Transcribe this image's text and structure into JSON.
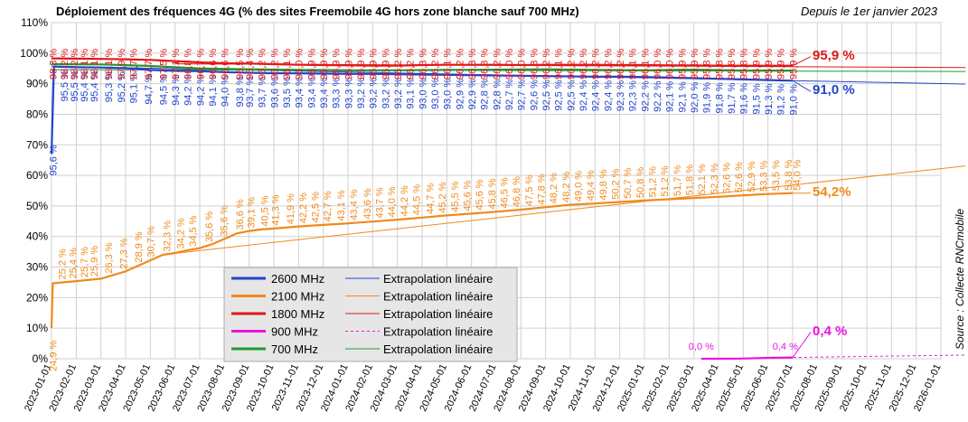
{
  "chart_data": {
    "type": "line",
    "title": "Déploiement des fréquences 4G (% des sites Freemobile 4G hors zone blanche sauf 700 MHz)",
    "subtitle": "Depuis le 1er janvier 2023",
    "source": "Source : Collecte RNCmobile",
    "ylim": [
      0,
      110
    ],
    "y_ticks": [
      "0%",
      "10%",
      "20%",
      "30%",
      "40%",
      "50%",
      "60%",
      "70%",
      "80%",
      "90%",
      "100%",
      "110%"
    ],
    "x_ticks": [
      "2023-01-01",
      "2023-02-01",
      "2023-03-01",
      "2023-04-01",
      "2023-05-01",
      "2023-06-01",
      "2023-07-01",
      "2023-08-01",
      "2023-09-01",
      "2023-10-01",
      "2023-11-01",
      "2023-12-01",
      "2024-01-01",
      "2024-02-01",
      "2024-03-01",
      "2024-04-01",
      "2024-05-01",
      "2024-06-01",
      "2024-07-01",
      "2024-08-01",
      "2024-09-01",
      "2024-10-01",
      "2024-11-01",
      "2024-12-01",
      "2025-01-01",
      "2025-02-01",
      "2025-03-01",
      "2025-04-01",
      "2025-05-01",
      "2025-06-01",
      "2025-07-01",
      "2025-08-01",
      "2025-09-01",
      "2025-10-01",
      "2025-11-01",
      "2025-12-01",
      "2026-01-01"
    ],
    "grid": true,
    "legend_position": "bottom-left",
    "legend": [
      {
        "series": "2600 MHz",
        "extrapolation": "Extrapolation linéaire",
        "color": "#2244cc"
      },
      {
        "series": "2100 MHz",
        "extrapolation": "Extrapolation linéaire",
        "color": "#f08a1c"
      },
      {
        "series": "1800 MHz",
        "extrapolation": "Extrapolation linéaire",
        "color": "#e01818"
      },
      {
        "series": "900 MHz",
        "extrapolation": "Extrapolation linéaire",
        "color": "#e814e0"
      },
      {
        "series": "700 MHz",
        "extrapolation": "Extrapolation linéaire",
        "color": "#229933"
      }
    ],
    "series": [
      {
        "name": "2600 MHz",
        "color": "#2244cc",
        "labels_x": [
          0.1,
          0.55,
          0.95,
          1.35,
          1.75,
          2.35,
          2.85,
          3.35,
          3.95,
          4.55,
          5.05,
          5.55,
          6.05,
          6.55,
          7.05,
          7.65,
          8.05,
          8.55,
          9.05,
          9.55,
          10.05,
          10.55,
          11.05,
          11.55,
          12.05,
          12.55,
          13.05,
          13.55,
          14.05,
          14.55,
          15.05,
          15.55,
          16.05,
          16.55,
          17.05,
          17.55,
          18.05,
          18.55,
          19.05,
          19.55,
          20.05,
          20.55,
          21.05,
          21.55,
          22.05,
          22.55,
          23.05,
          23.55,
          24.05,
          24.55,
          25.05,
          25.55,
          26.05,
          26.55,
          27.05,
          27.55,
          28.05,
          28.55,
          29.05,
          29.55,
          30.05
        ],
        "labels": [
          "95,6 %",
          "95,5 %",
          "95,5 %",
          "95,4 %",
          "95,4 %",
          "95,3 %",
          "95,2 %",
          "95,1 %",
          "94,7 %",
          "94,5 %",
          "94,3 %",
          "94,2 %",
          "94,2 %",
          "94,1 %",
          "94,0 %",
          "93,8 %",
          "93,7 %",
          "93,7 %",
          "93,6 %",
          "93,5 %",
          "93,4 %",
          "93,4 %",
          "93,4 %",
          "93,3 %",
          "93,3 %",
          "93,2 %",
          "93,2 %",
          "93,2 %",
          "93,2 %",
          "93,1 %",
          "93,0 %",
          "93,0 %",
          "93,0 %",
          "92,9 %",
          "92,9 %",
          "92,8 %",
          "92,8 %",
          "92,7 %",
          "92,7 %",
          "92,6 %",
          "92,5 %",
          "92,5 %",
          "92,5 %",
          "92,4 %",
          "92,4 %",
          "92,4 %",
          "92,3 %",
          "92,3 %",
          "92,2 %",
          "92,2 %",
          "92,1 %",
          "92,1 %",
          "92,0 %",
          "91,9 %",
          "91,8 %",
          "91,7 %",
          "91,6 %",
          "91,5 %",
          "91,3 %",
          "91,2 %",
          "91,0 %"
        ],
        "x": [
          0,
          0.1,
          0.5,
          1,
          2,
          3,
          4,
          5,
          6,
          7,
          8,
          9,
          10,
          11,
          12,
          13,
          14,
          15,
          16,
          17,
          18,
          19,
          20,
          21,
          22,
          23,
          24,
          25,
          26,
          27,
          28,
          29,
          30
        ],
        "values": [
          67,
          95.6,
          95.5,
          95.4,
          95.3,
          95.1,
          94.5,
          94.2,
          94.1,
          93.8,
          93.6,
          93.4,
          93.4,
          93.3,
          93.2,
          93.2,
          93.1,
          93.0,
          92.9,
          92.8,
          92.7,
          92.6,
          92.5,
          92.4,
          92.3,
          92.3,
          92.2,
          92.0,
          91.8,
          91.6,
          91.4,
          91.2,
          91.0
        ],
        "end_label": "91,0 %",
        "extrapolation": {
          "x": [
            0,
            37
          ],
          "values": [
            95.7,
            89.9
          ]
        }
      },
      {
        "name": "2100 MHz",
        "color": "#f08a1c",
        "labels_x": [
          0.1,
          0.45,
          0.9,
          1.35,
          1.75,
          2.35,
          2.95,
          3.55,
          4.05,
          4.7,
          5.25,
          5.75,
          6.4,
          7.0,
          7.65,
          8.1,
          8.65,
          9.1,
          9.7,
          10.2,
          10.7,
          11.2,
          11.75,
          12.25,
          12.8,
          13.3,
          13.8,
          14.3,
          14.8,
          15.35,
          15.85,
          16.35,
          16.85,
          17.35,
          17.85,
          18.35,
          18.85,
          19.35,
          19.85,
          20.35,
          20.85,
          21.35,
          21.85,
          22.35,
          22.85,
          23.35,
          23.85,
          24.35,
          24.85,
          25.35,
          25.85,
          26.35,
          26.85,
          27.35,
          27.85,
          28.35,
          28.85,
          29.35,
          29.85,
          30.2
        ],
        "labels": [
          "24,9 %",
          "25,2 %",
          "25,4 %",
          "25,7 %",
          "25,9 %",
          "26,3 %",
          "27,3 %",
          "28,9 %",
          "30,7 %",
          "32,3 %",
          "34,2 %",
          "34,5 %",
          "35,6 %",
          "35,6 %",
          "36,6 %",
          "39,1 %",
          "40,5 %",
          "41,3 %",
          "41,9 %",
          "42,2 %",
          "42,5 %",
          "42,7 %",
          "43,1 %",
          "43,4 %",
          "43,6 %",
          "43,7 %",
          "44,0 %",
          "44,2 %",
          "44,5 %",
          "44,7 %",
          "45,2 %",
          "45,5 %",
          "45,6 %",
          "45,6 %",
          "45,8 %",
          "46,5 %",
          "46,8 %",
          "47,5 %",
          "47,8 %",
          "48,2 %",
          "48,2 %",
          "49,0 %",
          "49,4 %",
          "49,8 %",
          "50,2 %",
          "50,7 %",
          "50,8 %",
          "51,2 %",
          "51,2 %",
          "51,7 %",
          "51,8 %",
          "52,1 %",
          "52,3 %",
          "52,6 %",
          "52,6 %",
          "52,9 %",
          "53,3 %",
          "53,5 %",
          "53,8 %",
          "54,0 %"
        ],
        "x": [
          0,
          0.05,
          1,
          2,
          3,
          4,
          4.5,
          5,
          5.5,
          6,
          6.5,
          7,
          7.5,
          8,
          8.5,
          9,
          10,
          11,
          12,
          13,
          14,
          15,
          16,
          17,
          18,
          19,
          20,
          21,
          22,
          23,
          24,
          25,
          26,
          27,
          28,
          29,
          30
        ],
        "values": [
          10,
          24.7,
          25.4,
          26.2,
          28.6,
          32.2,
          34.0,
          34.6,
          35.5,
          36.2,
          37.5,
          39.2,
          41.0,
          41.8,
          42.3,
          42.6,
          43.3,
          43.8,
          44.3,
          44.9,
          45.5,
          46.2,
          46.9,
          47.5,
          48.1,
          48.8,
          49.6,
          50.4,
          50.8,
          51.3,
          51.8,
          52.2,
          52.6,
          53.0,
          53.5,
          53.9,
          54.2
        ],
        "end_label": "54,2%",
        "extrapolation": {
          "x": [
            5,
            37
          ],
          "values": [
            34.5,
            63.1
          ]
        }
      },
      {
        "name": "1800 MHz",
        "color": "#e01818",
        "labels_x": [
          0.1,
          0.55,
          0.95,
          1.35,
          1.75,
          2.35,
          2.85,
          3.35,
          3.95,
          4.55,
          5.05,
          5.55,
          6.05,
          6.55,
          7.05,
          7.65,
          8.05,
          8.55,
          9.05,
          9.55,
          10.05,
          10.55,
          11.05,
          11.55,
          12.05,
          12.55,
          13.05,
          13.55,
          14.05,
          14.55,
          15.05,
          15.55,
          16.05,
          16.55,
          17.05,
          17.55,
          18.05,
          18.55,
          19.05,
          19.55,
          20.05,
          20.55,
          21.05,
          21.55,
          22.05,
          22.55,
          23.05,
          23.55,
          24.05,
          24.55,
          25.05,
          25.55,
          26.05,
          26.55,
          27.05,
          27.55,
          28.05,
          28.55,
          29.05,
          29.55,
          30.05
        ],
        "labels": [
          "98,3 %",
          "98,2 %",
          "98,2 %",
          "98,1 %",
          "98,1 %",
          "98,1 %",
          "97,9 %",
          "97,7 %",
          "97,7 %",
          "97,5 %",
          "97,1 %",
          "96,8 %",
          "96,7 %",
          "96,6 %",
          "96,6 %",
          "96,5 %",
          "96,4 %",
          "96,2 %",
          "96,2 %",
          "96,1 %",
          "96,0 %",
          "95,9 %",
          "95,9 %",
          "95,9 %",
          "95,9 %",
          "95,9 %",
          "95,9 %",
          "95,9 %",
          "96,2 %",
          "96,2 %",
          "96,3 %",
          "96,2 %",
          "96,1 %",
          "96,2 %",
          "96,3 %",
          "96,3 %",
          "96,2 %",
          "96,0 %",
          "96,0 %",
          "96,3 %",
          "96,2 %",
          "96,1 %",
          "96,2 %",
          "96,2 %",
          "96,2 %",
          "96,2 %",
          "96,2 %",
          "96,1 %",
          "96,1 %",
          "96,0 %",
          "96,0 %",
          "95,9 %",
          "95,9 %",
          "95,8 %",
          "95,8 %",
          "95,8 %",
          "95,8 %",
          "95,9 %",
          "95,9 %",
          "95,9 %",
          "95,9 %"
        ],
        "x": [
          0,
          1,
          2,
          3,
          4,
          5,
          6,
          7,
          8,
          9,
          10,
          11,
          12,
          13,
          14,
          15,
          16,
          17,
          18,
          19,
          20,
          21,
          22,
          23,
          24,
          25,
          26,
          27,
          28,
          29,
          30
        ],
        "values": [
          98.3,
          98.2,
          98.1,
          98.0,
          97.8,
          97.4,
          97.0,
          96.7,
          96.6,
          96.4,
          96.2,
          96.1,
          96.0,
          95.9,
          95.9,
          96.1,
          96.2,
          96.2,
          96.2,
          96.1,
          96.2,
          96.2,
          96.2,
          96.1,
          96.1,
          96.0,
          96.0,
          95.9,
          95.9,
          95.9,
          95.9
        ],
        "end_label": "95,9 %",
        "extrapolation": {
          "x": [
            5,
            37
          ],
          "values": [
            96.5,
            95.3
          ]
        }
      },
      {
        "name": "900 MHz",
        "color": "#e814e0",
        "labels_x": [
          26.3,
          29.7
        ],
        "labels": [
          "0,0 %",
          "0,4 %"
        ],
        "x": [
          26.3,
          27,
          28,
          29,
          30
        ],
        "values": [
          0.0,
          0.0,
          0.05,
          0.3,
          0.4
        ],
        "end_label": "0,4 %",
        "extrapolation": {
          "x": [
            26.3,
            37
          ],
          "values": [
            0.0,
            1.2
          ]
        }
      },
      {
        "name": "700 MHz",
        "color": "#229933",
        "labels_x": [],
        "labels": [],
        "x": [
          0,
          2,
          4,
          6,
          8,
          10,
          12,
          14,
          16,
          18,
          20,
          22,
          24,
          26,
          28,
          30
        ],
        "values": [
          96.4,
          96.3,
          95.8,
          95.0,
          94.7,
          94.5,
          94.4,
          94.4,
          94.5,
          94.6,
          94.7,
          94.5,
          94.4,
          94.6,
          94.3,
          94.3
        ],
        "end_label": "",
        "extrapolation": {
          "x": [
            0,
            37
          ],
          "values": [
            94.6,
            94.0
          ]
        }
      }
    ]
  }
}
